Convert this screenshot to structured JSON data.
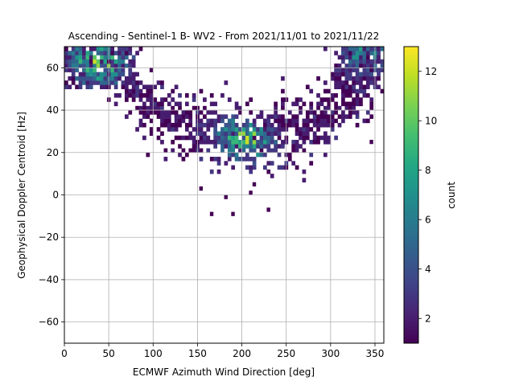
{
  "chart_data": {
    "type": "heatmap",
    "title": "Ascending - Sentinel-1 B- WV2 - From 2021/11/01 to 2021/11/22",
    "xlabel": "ECMWF Azimuth Wind Direction [deg]",
    "ylabel": "Geophysical Doppler Centroid [Hz]",
    "xlim": [
      0,
      360
    ],
    "ylim": [
      -70,
      70
    ],
    "x_ticks": [
      0,
      50,
      100,
      150,
      200,
      250,
      300,
      350
    ],
    "y_ticks": [
      -60,
      -40,
      -20,
      0,
      20,
      40,
      60
    ],
    "grid": true,
    "bin_width_x": 4,
    "bin_width_y": 2,
    "colorbar": {
      "label": "count",
      "range": [
        1,
        13
      ],
      "ticks": [
        2,
        4,
        6,
        8,
        10,
        12
      ],
      "colormap": "viridis"
    },
    "density_model": {
      "description": "bins follow a V-shaped band: centre y = 27 + 36*((x-205)/155)^2, spread ~8 Hz; high-count clusters near x=25-60,y=58-68 and x=320-360,y=58-68",
      "core_centers": [
        [
          30,
          64
        ],
        [
          45,
          60
        ],
        [
          340,
          66
        ],
        [
          195,
          28
        ],
        [
          210,
          24
        ]
      ]
    }
  }
}
